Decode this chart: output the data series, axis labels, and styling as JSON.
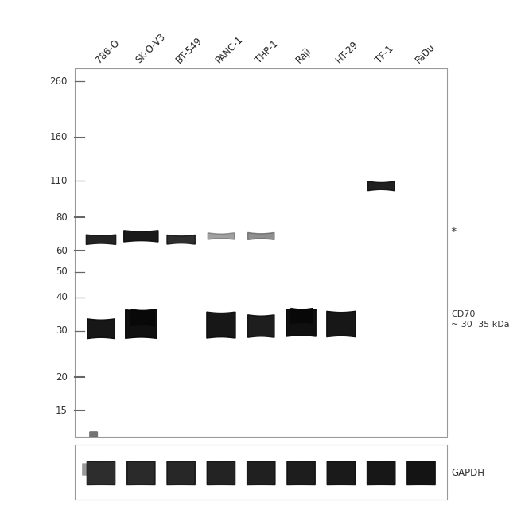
{
  "cell_lines": [
    "786-O",
    "SK-O-V3",
    "BT-549",
    "PANC-1",
    "THP-1",
    "Raji",
    "HT-29",
    "TF-1",
    "FaDu"
  ],
  "mw_markers": [
    260,
    160,
    110,
    80,
    60,
    50,
    40,
    30,
    20,
    15
  ],
  "bg_color": "#d8d8d8",
  "gapdh_bg": "#d0d0d0",
  "band_color": "#0a0a0a",
  "upper_band_color": "#1a1a1a",
  "faint_band_color": "#555555",
  "annotation_star": "*",
  "cd70_label": "CD70\n~ 30- 35 kDa",
  "gapdh_label": "GAPDH",
  "fontsize_labels": 8.5,
  "fontsize_mw": 8.5
}
